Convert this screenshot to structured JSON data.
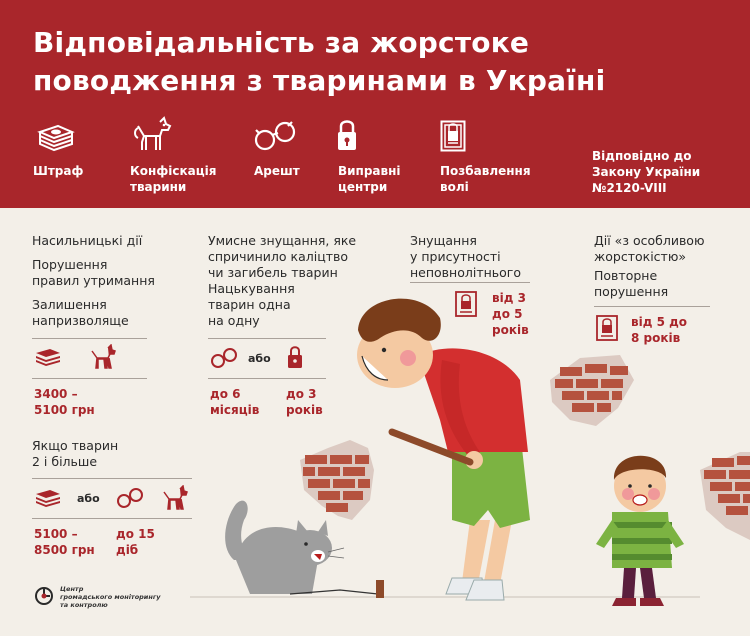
{
  "title_line1": "Відповідальність за жорстоке",
  "title_line2": "поводження з тваринами в Україні",
  "legend": {
    "fine": "Штраф",
    "confiscation_1": "Конфіскація",
    "confiscation_2": "тварини",
    "arrest": "Арешт",
    "correctional_1": "Виправні",
    "correctional_2": "центри",
    "imprisonment_1": "Позбавлення",
    "imprisonment_2": "волі",
    "law_1": "Відповідно до",
    "law_2": "Закону України",
    "law_3": "№2120-VIII"
  },
  "col1": {
    "item1": "Насильницькі дії",
    "item2_1": "Порушення",
    "item2_2": "правил утримання",
    "item3_1": "Залишення",
    "item3_2": "напризволяще",
    "fine1_1": "3400 –",
    "fine1_2": "5100 грн",
    "cond_1": "Якщо тварин",
    "cond_2": "2 і більше",
    "or": "або",
    "fine2_1": "5100 –",
    "fine2_2": "8500 грн",
    "days_1": "до 15",
    "days_2": "діб"
  },
  "col2": {
    "item1_1": "Умисне знущання, яке",
    "item1_2": "спричинило каліцтво",
    "item1_3": "чи загибель тварин",
    "item2_1": "Нацькування",
    "item2_2": "тварин одна",
    "item2_3": "на одну",
    "or": "або",
    "months_1": "до 6",
    "months_2": "місяців",
    "years_1": "до 3",
    "years_2": "років"
  },
  "col3": {
    "item1_1": "Знущання",
    "item1_2": "у присутності",
    "item1_3": "неповнолітнього",
    "years_1": "від 3",
    "years_2": "до 5",
    "years_3": "років"
  },
  "col4": {
    "item1_1": "Дії «з особливою",
    "item1_2": "жорстокістю»",
    "item2_1": "Повторне",
    "item2_2": "порушення",
    "years_1": "від 5 до",
    "years_2": "8 років"
  },
  "logo": {
    "line1": "Центр",
    "line2": "громадського моніторингу",
    "line3": "та контролю"
  },
  "colors": {
    "brand_red": "#a9262b",
    "background": "#f3efe8",
    "text": "#2a2a2a"
  }
}
